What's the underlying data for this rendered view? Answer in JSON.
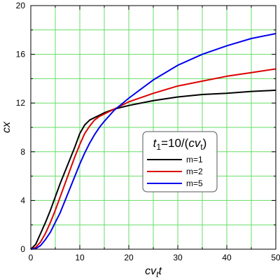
{
  "chart_data": {
    "type": "line",
    "title": "",
    "xlabel": "cvtt",
    "ylabel": "cx",
    "xlim": [
      0,
      50
    ],
    "ylim": [
      0,
      20
    ],
    "xticks": [
      0,
      10,
      20,
      30,
      40,
      50
    ],
    "yticks": [
      0,
      4,
      8,
      12,
      16,
      20
    ],
    "xtick_labels": [
      "0",
      "10",
      "20",
      "30",
      "40",
      "50"
    ],
    "ytick_labels": [
      "0",
      "4",
      "8",
      "12",
      "16",
      "20"
    ],
    "grid": true,
    "grid_color": "#66dd66",
    "legend_position": "center-right",
    "legend_title": "t1=10/(cvt)",
    "series": [
      {
        "name": "m=1",
        "color": "#000000",
        "x": [
          0,
          1,
          2,
          3,
          4,
          5,
          6,
          7,
          8,
          9,
          10,
          11,
          12,
          13,
          14,
          15,
          17,
          20,
          25,
          30,
          35,
          40,
          45,
          50
        ],
        "y": [
          0,
          0.4,
          1.3,
          2.2,
          3.2,
          4.3,
          5.4,
          6.4,
          7.4,
          8.4,
          9.5,
          10.2,
          10.6,
          10.8,
          11.0,
          11.2,
          11.5,
          11.8,
          12.2,
          12.5,
          12.7,
          12.8,
          12.95,
          13.05
        ]
      },
      {
        "name": "m=2",
        "color": "#dd0000",
        "x": [
          0,
          1,
          2,
          3,
          4,
          5,
          6,
          7,
          8,
          9,
          10,
          11,
          12,
          13,
          14,
          15,
          17,
          20,
          25,
          30,
          35,
          40,
          45,
          50
        ],
        "y": [
          0,
          0.15,
          0.6,
          1.3,
          2.2,
          3.2,
          4.3,
          5.4,
          6.5,
          7.6,
          8.6,
          9.5,
          10.1,
          10.6,
          10.9,
          11.1,
          11.5,
          12.1,
          12.8,
          13.4,
          13.8,
          14.2,
          14.5,
          14.8
        ]
      },
      {
        "name": "m=5",
        "color": "#0000ee",
        "x": [
          0,
          1,
          2,
          3,
          4,
          5,
          6,
          7,
          8,
          9,
          10,
          11,
          12,
          13,
          14,
          15,
          17,
          20,
          25,
          30,
          35,
          40,
          45,
          50
        ],
        "y": [
          0,
          0.05,
          0.3,
          0.8,
          1.4,
          2.2,
          3.0,
          4.0,
          5.0,
          6.0,
          7.0,
          7.9,
          8.7,
          9.4,
          10.0,
          10.5,
          11.4,
          12.4,
          13.9,
          15.1,
          16.0,
          16.7,
          17.3,
          17.7
        ]
      }
    ]
  }
}
